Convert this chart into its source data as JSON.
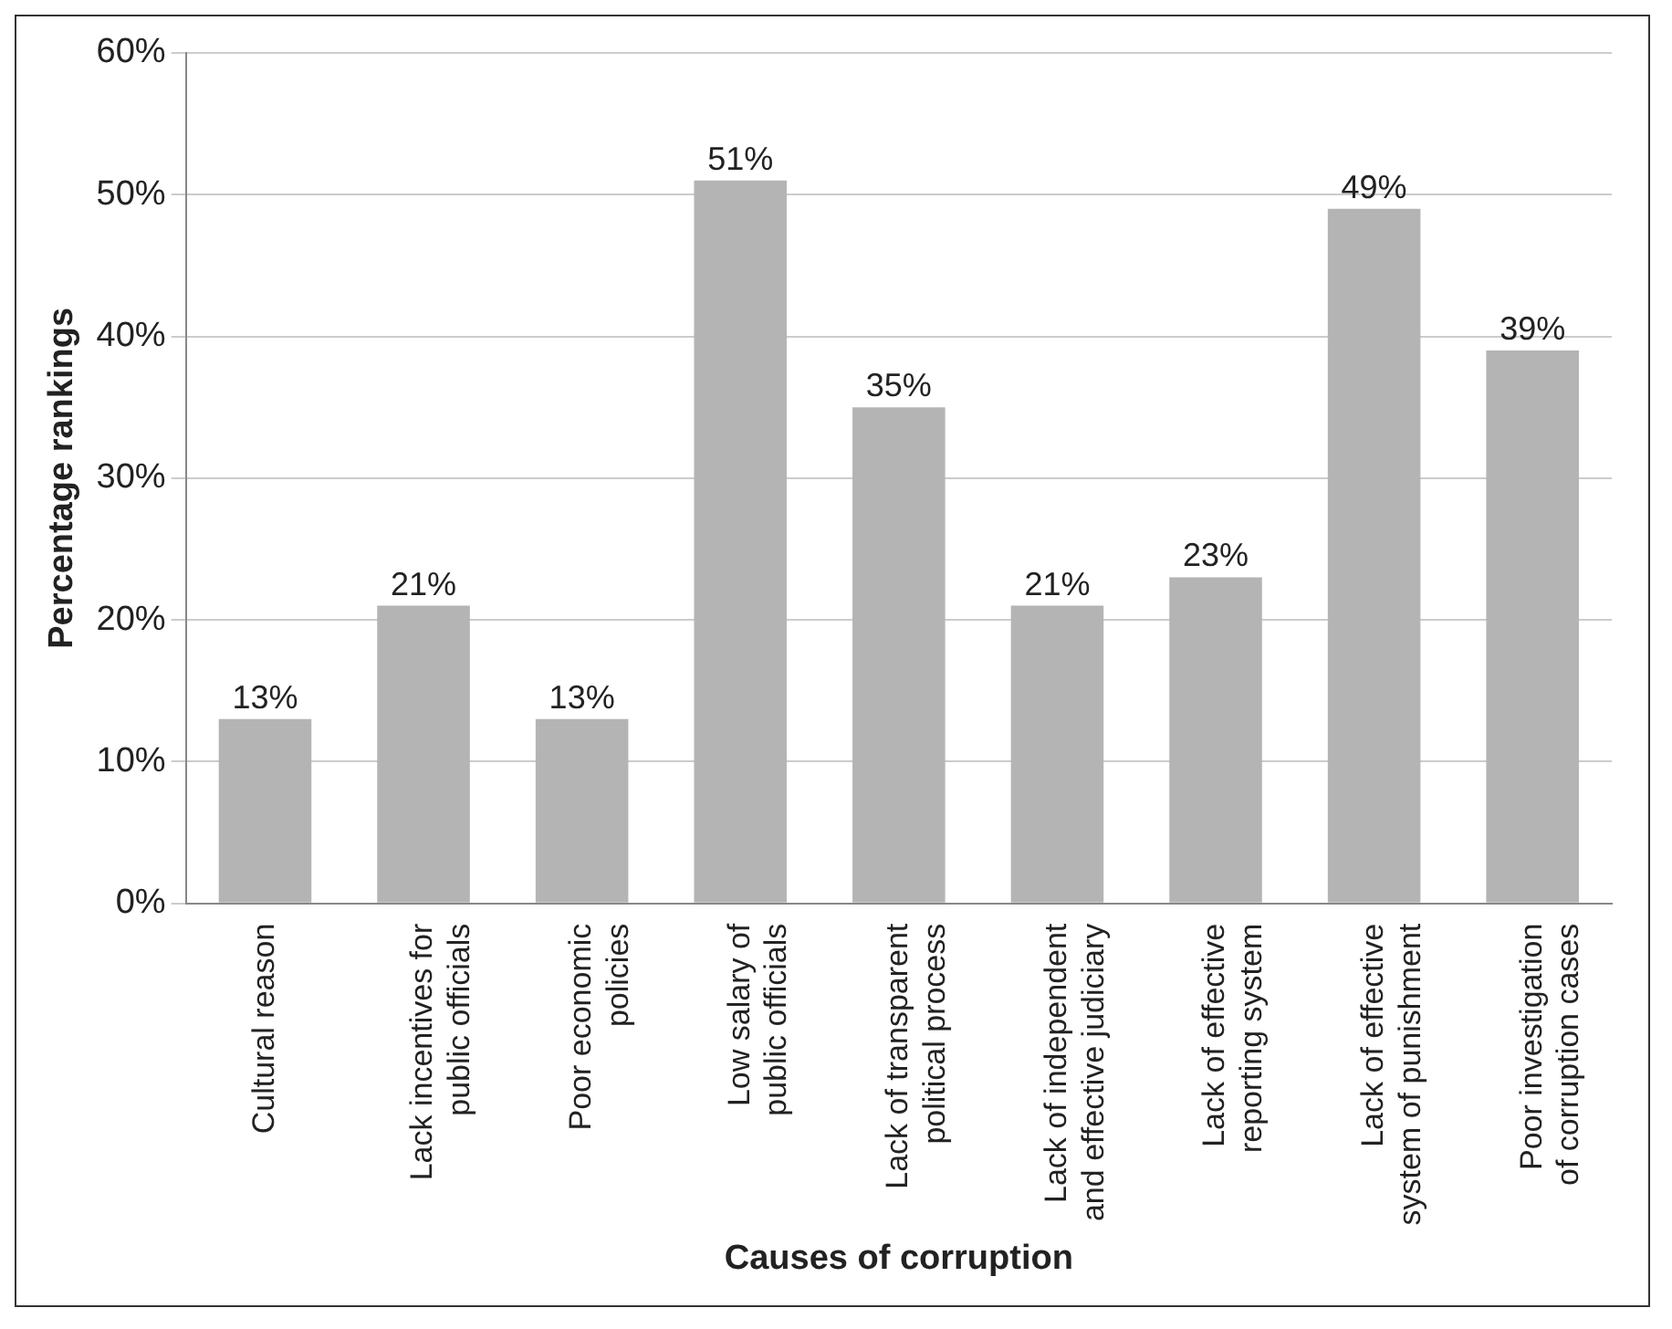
{
  "chart_data": {
    "type": "bar",
    "xlabel": "Causes of corruption",
    "ylabel": "Percentage rankings",
    "categories": [
      "Cultural reason",
      "Lack incentives for public officials",
      "Poor economic policies",
      "Low salary of public officials",
      "Lack of transparent political process",
      "Lack of independent and effective judiciary",
      "Lack of effective reporting system",
      "Lack of effective system of punishment",
      "Poor investigation of corruption cases"
    ],
    "values": [
      13,
      21,
      13,
      51,
      35,
      21,
      23,
      49,
      39
    ],
    "value_labels": [
      "13%",
      "21%",
      "13%",
      "51%",
      "35%",
      "21%",
      "23%",
      "49%",
      "39%"
    ],
    "color": "#b4b4b4",
    "ylim": [
      0,
      60
    ],
    "yticks": [
      {
        "value": 0,
        "label": "0%"
      },
      {
        "value": 10,
        "label": "10%"
      },
      {
        "value": 20,
        "label": "20%"
      },
      {
        "value": 30,
        "label": "30%"
      },
      {
        "value": 40,
        "label": "40%"
      },
      {
        "value": 50,
        "label": "50%"
      },
      {
        "value": 60,
        "label": "60%"
      }
    ],
    "grid": "y"
  }
}
